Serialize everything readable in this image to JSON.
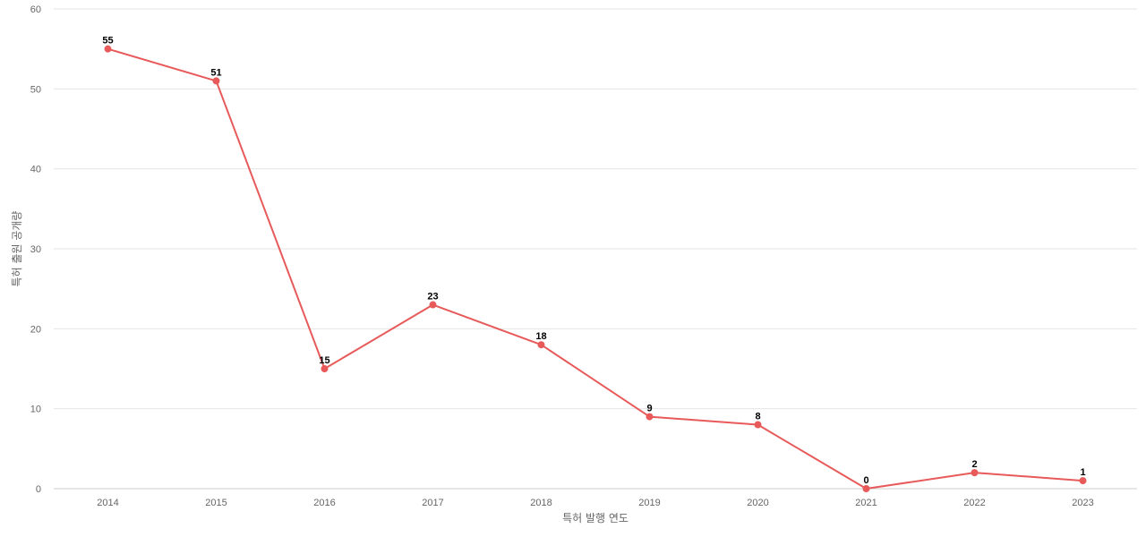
{
  "chart_data": {
    "type": "line",
    "title": "",
    "xlabel": "특허 발행 연도",
    "ylabel": "특허 출원 공개량",
    "x": [
      "2014",
      "2015",
      "2016",
      "2017",
      "2018",
      "2019",
      "2020",
      "2021",
      "2022",
      "2023"
    ],
    "series": [
      {
        "values": [
          55,
          51,
          15,
          23,
          18,
          9,
          8,
          0,
          2,
          1
        ],
        "color": "#e85a5a"
      }
    ],
    "ylim": [
      0,
      60
    ],
    "yticks": [
      0,
      10,
      20,
      30,
      40,
      50,
      60
    ],
    "grid": true,
    "legend": "none",
    "data_labels": true
  }
}
